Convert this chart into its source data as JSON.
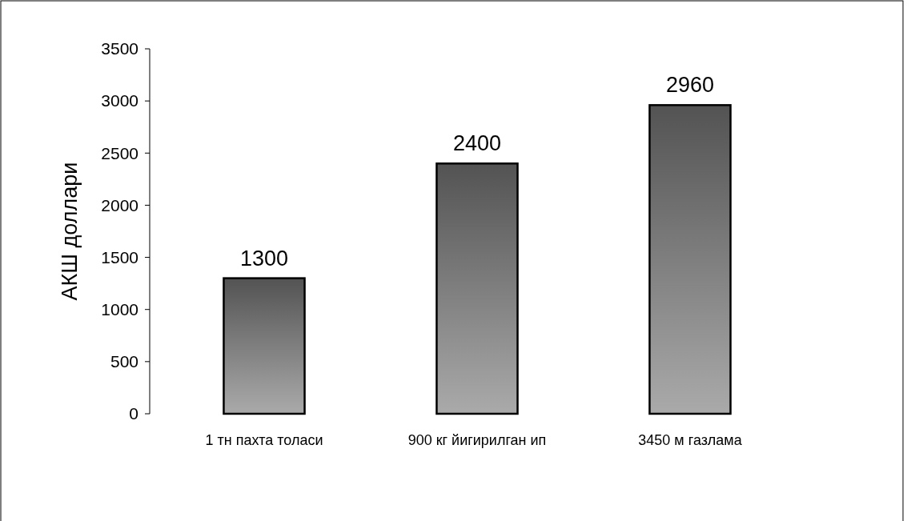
{
  "chart_data": {
    "type": "bar",
    "ylabel": "АКШ доллари",
    "categories": [
      "1 тн пахта толаси",
      "900 кг йигирилган ип",
      "3450 м газлама"
    ],
    "values": [
      1300,
      2400,
      2960
    ],
    "color": "#808080",
    "ylim": [
      0,
      3500
    ],
    "yticks": [
      0,
      500,
      1000,
      1500,
      2000,
      2500,
      3000,
      3500
    ],
    "grid": false,
    "data_labels": true
  }
}
